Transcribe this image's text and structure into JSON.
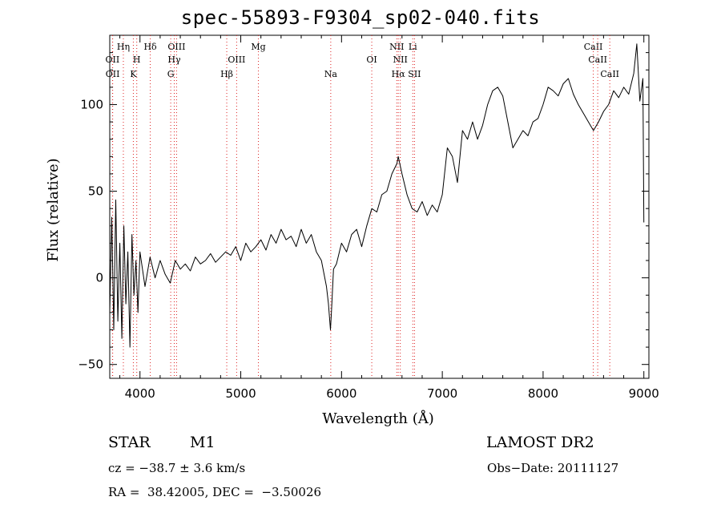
{
  "chart_data": {
    "type": "line",
    "title": "spec-55893-F9304_sp02-040.fits",
    "xlabel": "Wavelength (Å)",
    "ylabel": "Flux (relative)",
    "xlim": [
      3700,
      9050
    ],
    "ylim": [
      -58,
      140
    ],
    "x_ticks": [
      4000,
      5000,
      6000,
      7000,
      8000,
      9000
    ],
    "y_ticks": [
      -50,
      0,
      50,
      100
    ],
    "grid": false,
    "series": [
      {
        "x": [
          3700,
          3720,
          3740,
          3760,
          3780,
          3800,
          3820,
          3840,
          3860,
          3880,
          3900,
          3920,
          3940,
          3960,
          3980,
          4000,
          4050,
          4100,
          4150,
          4200,
          4250,
          4300,
          4350,
          4400,
          4450,
          4500,
          4550,
          4600,
          4650,
          4700,
          4750,
          4800,
          4850,
          4900,
          4950,
          5000,
          5050,
          5100,
          5150,
          5200,
          5250,
          5300,
          5350,
          5400,
          5450,
          5500,
          5550,
          5600,
          5650,
          5700,
          5750,
          5800,
          5850,
          5870,
          5890,
          5900,
          5920,
          5950,
          6000,
          6050,
          6100,
          6150,
          6200,
          6250,
          6300,
          6350,
          6400,
          6450,
          6500,
          6550,
          6563,
          6600,
          6650,
          6700,
          6750,
          6800,
          6850,
          6900,
          6950,
          7000,
          7050,
          7100,
          7150,
          7200,
          7250,
          7300,
          7350,
          7400,
          7450,
          7500,
          7550,
          7600,
          7650,
          7700,
          7750,
          7800,
          7850,
          7900,
          7950,
          8000,
          8050,
          8100,
          8150,
          8200,
          8250,
          8300,
          8350,
          8400,
          8450,
          8500,
          8550,
          8600,
          8650,
          8700,
          8750,
          8800,
          8850,
          8900,
          8930,
          8960,
          8990,
          9000
        ],
        "y": [
          -20,
          35,
          -30,
          45,
          -25,
          20,
          -35,
          30,
          -15,
          15,
          -40,
          25,
          -10,
          10,
          -20,
          15,
          -5,
          12,
          0,
          10,
          2,
          -3,
          10,
          5,
          8,
          4,
          12,
          8,
          10,
          14,
          9,
          12,
          15,
          13,
          18,
          10,
          20,
          15,
          18,
          22,
          16,
          25,
          20,
          28,
          22,
          24,
          18,
          28,
          20,
          25,
          15,
          10,
          -5,
          -15,
          -30,
          -20,
          5,
          8,
          20,
          15,
          25,
          28,
          18,
          30,
          40,
          38,
          48,
          50,
          60,
          66,
          70,
          60,
          48,
          40,
          38,
          44,
          36,
          42,
          38,
          48,
          75,
          70,
          55,
          85,
          80,
          90,
          80,
          88,
          100,
          108,
          110,
          105,
          90,
          75,
          80,
          85,
          82,
          90,
          92,
          100,
          110,
          108,
          105,
          112,
          115,
          106,
          100,
          95,
          90,
          85,
          90,
          96,
          100,
          108,
          104,
          110,
          106,
          118,
          135,
          102,
          115,
          32
        ]
      }
    ],
    "lines": [
      {
        "label": "OII",
        "x": 3727,
        "row": 2
      },
      {
        "label": "OII",
        "x": 3729,
        "row": 3
      },
      {
        "label": "Hη",
        "x": 3835,
        "row": 1
      },
      {
        "label": "H",
        "x": 3968,
        "row": 2
      },
      {
        "label": "K",
        "x": 3934,
        "row": 3
      },
      {
        "label": "Hδ",
        "x": 4102,
        "row": 1
      },
      {
        "label": "OIII",
        "x": 4363,
        "row": 1
      },
      {
        "label": "Hγ",
        "x": 4340,
        "row": 2
      },
      {
        "label": "G",
        "x": 4305,
        "row": 3
      },
      {
        "label": "Mg",
        "x": 5175,
        "row": 1
      },
      {
        "label": "OIII",
        "x": 4959,
        "row": 2
      },
      {
        "label": "Hβ",
        "x": 4861,
        "row": 3
      },
      {
        "label": "Na",
        "x": 5893,
        "row": 3
      },
      {
        "label": "OI",
        "x": 6300,
        "row": 2
      },
      {
        "label": "NII",
        "x": 6548,
        "row": 1
      },
      {
        "label": "Li",
        "x": 6707,
        "row": 1
      },
      {
        "label": "NII",
        "x": 6583,
        "row": 2
      },
      {
        "label": "Hα",
        "x": 6563,
        "row": 3
      },
      {
        "label": "SII",
        "x": 6724,
        "row": 3
      },
      {
        "label": "CaII",
        "x": 8498,
        "row": 1
      },
      {
        "label": "CaII",
        "x": 8542,
        "row": 2
      },
      {
        "label": "CaII",
        "x": 8662,
        "row": 3
      }
    ]
  },
  "info": {
    "object_class": "STAR",
    "subclass": "M1",
    "survey": "LAMOST DR2",
    "cz": "cz = −38.7 ± 3.6 km/s",
    "obs_date": "Obs−Date: 20111127",
    "coords": "RA =  38.42005, DEC =  −3.50026"
  }
}
